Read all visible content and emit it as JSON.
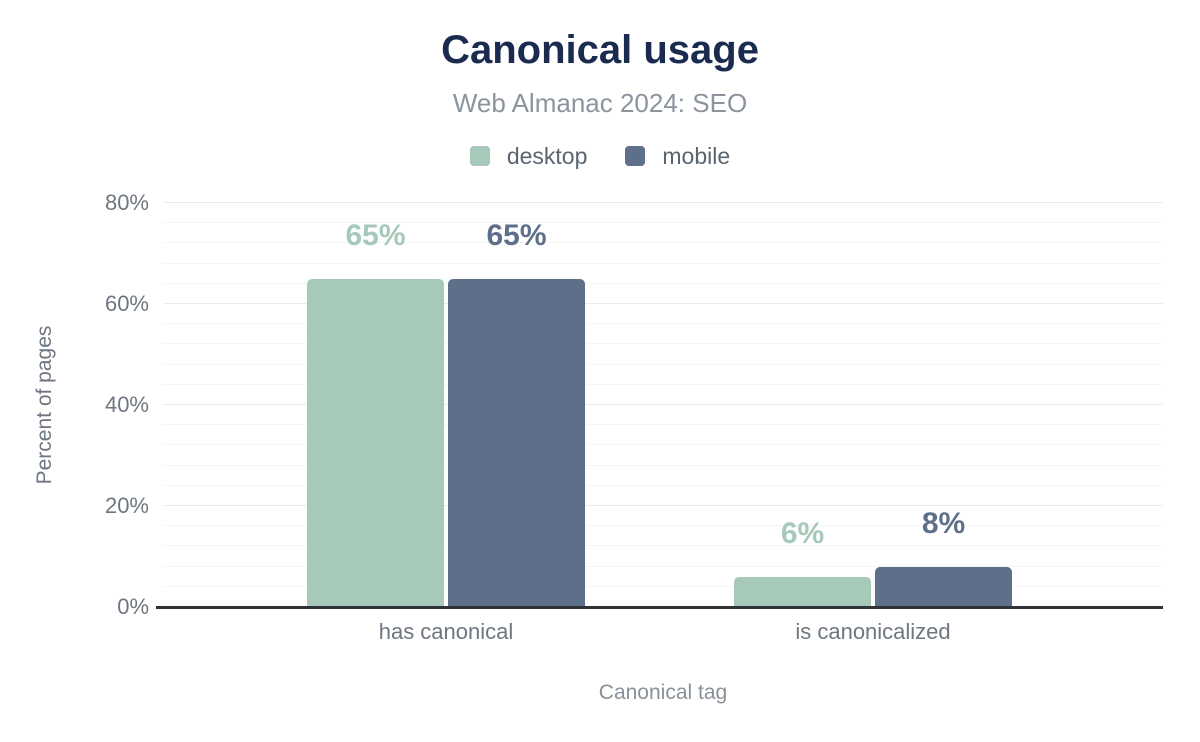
{
  "palette": {
    "title_navy": "#1b2b4f",
    "subtitle_gray": "#8b949e",
    "axis_line": "#303336",
    "grid_major": "#ebebeb",
    "grid_minor": "#f5f5f5"
  },
  "chart_data": {
    "type": "bar",
    "title": "Canonical usage",
    "subtitle": "Web Almanac 2024: SEO",
    "categories": [
      "has canonical",
      "is canonicalized"
    ],
    "series": [
      {
        "name": "desktop",
        "color": "#a7c9b9",
        "values": [
          65,
          6
        ],
        "labels": [
          "65%",
          "6%"
        ]
      },
      {
        "name": "mobile",
        "color": "#5e7089",
        "values": [
          65,
          8
        ],
        "labels": [
          "65%",
          "8%"
        ]
      }
    ],
    "xlabel": "Canonical tag",
    "ylabel": "Percent of pages",
    "ylim": [
      0,
      80
    ],
    "y_ticks": [
      0,
      20,
      40,
      60,
      80
    ],
    "y_tick_labels": [
      "0%",
      "20%",
      "40%",
      "60%",
      "80%"
    ],
    "minor_grid_step": 4,
    "grid": true,
    "legend_position": "top"
  }
}
